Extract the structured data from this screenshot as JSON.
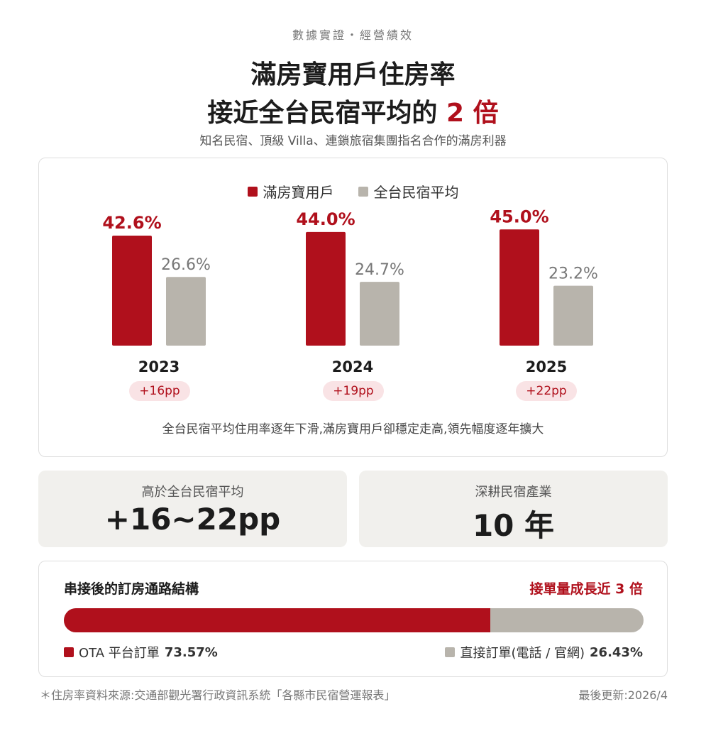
{
  "header": {
    "eyebrow": "數據實證・經營績效",
    "title_line1": "滿房寶用戶住房率",
    "title_line2_main": "接近全台民宿平均的",
    "title_line2_accent": "2 倍",
    "subtitle": "知名民宿、頂級 Villa、連鎖旅宿集團指名合作的滿房利器"
  },
  "colors": {
    "primary": "#b0101c",
    "secondary": "#b8b4ac",
    "pill_bg": "#f9e3e5",
    "stat_bg": "#f1f0ed"
  },
  "chart_data": {
    "type": "bar",
    "categories": [
      "2023",
      "2024",
      "2025"
    ],
    "series": [
      {
        "name": "滿房寶用戶",
        "values": [
          42.6,
          44.0,
          45.0
        ],
        "labels": [
          "42.6%",
          "44.0%",
          "45.0%"
        ]
      },
      {
        "name": "全台民宿平均",
        "values": [
          26.6,
          24.7,
          23.2
        ],
        "labels": [
          "26.6%",
          "24.7%",
          "23.2%"
        ]
      }
    ],
    "differences": [
      "+16pp",
      "+19pp",
      "+22pp"
    ],
    "legend_position": "top-center",
    "grid": false,
    "caption": "全台民宿平均住用率逐年下滑,滿房寶用戶卻穩定走高,領先幅度逐年擴大"
  },
  "stats": [
    {
      "label": "高於全台民宿平均",
      "value": "+16~22pp"
    },
    {
      "label": "深耕民宿產業",
      "value": "10 年"
    }
  ],
  "channel": {
    "title": "串接後的訂房通路結構",
    "highlight": "接單量成長近 3 倍",
    "ota_share": 73.57,
    "ota_label": "OTA 平台訂單",
    "ota_value": "73.57%",
    "direct_label": "直接訂單(電話 / 官網)",
    "direct_value": "26.43%"
  },
  "footer": {
    "source": "＊住房率資料來源:交通部觀光署行政資訊系統「各縣市民宿營運報表」",
    "updated": "最後更新:2026/4"
  }
}
